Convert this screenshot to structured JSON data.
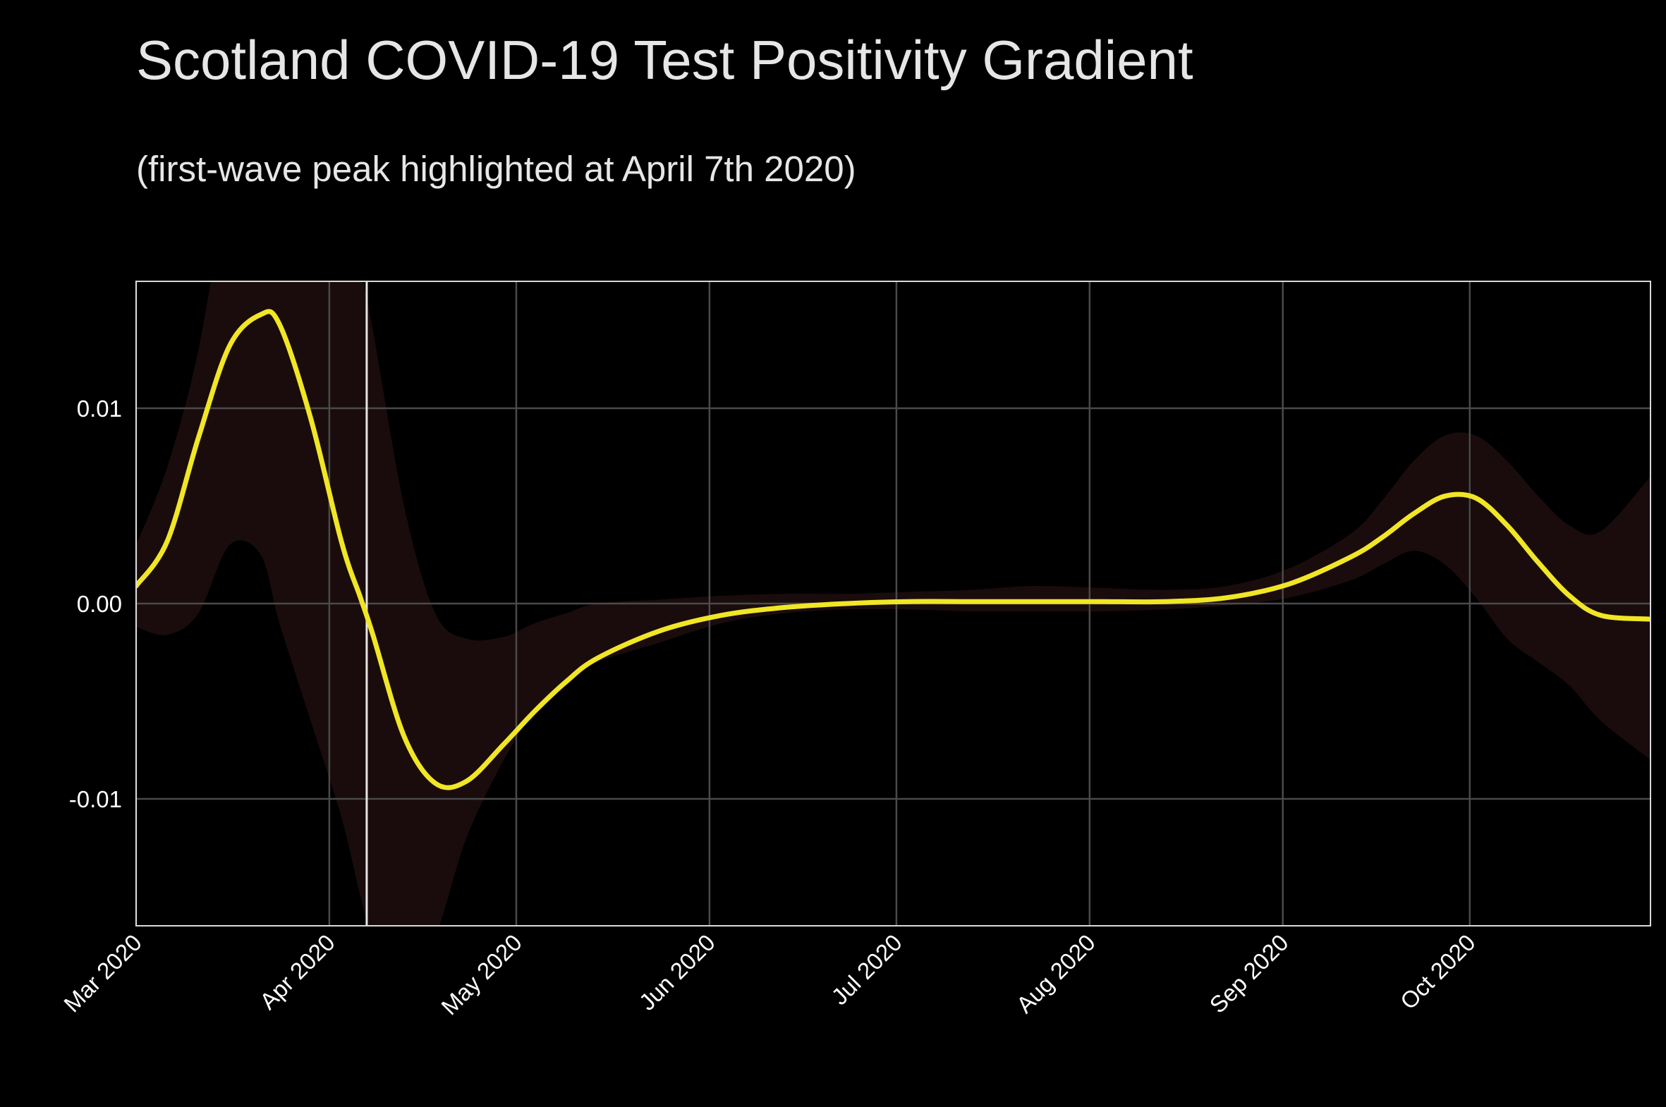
{
  "chart_data": {
    "type": "line",
    "title": "Scotland COVID-19 Test Positivity Gradient",
    "subtitle": "(first-wave peak highlighted at April 7th 2020)",
    "xlabel": "",
    "ylabel": "",
    "x_range": [
      "2020-03-01",
      "2020-10-30"
    ],
    "ylim": [
      -0.0165,
      0.0165
    ],
    "x_ticks": [
      {
        "date": "2020-03-01",
        "label": "Mar 2020"
      },
      {
        "date": "2020-04-01",
        "label": "Apr 2020"
      },
      {
        "date": "2020-05-01",
        "label": "May 2020"
      },
      {
        "date": "2020-06-01",
        "label": "Jun 2020"
      },
      {
        "date": "2020-07-01",
        "label": "Jul 2020"
      },
      {
        "date": "2020-08-01",
        "label": "Aug 2020"
      },
      {
        "date": "2020-09-01",
        "label": "Sep 2020"
      },
      {
        "date": "2020-10-01",
        "label": "Oct 2020"
      }
    ],
    "y_ticks": [
      {
        "value": -0.01,
        "label": "-0.01"
      },
      {
        "value": 0.0,
        "label": "0.00"
      },
      {
        "value": 0.01,
        "label": "0.01"
      }
    ],
    "grid": true,
    "highlight": {
      "date": "2020-04-07",
      "color": "#e6e6e6"
    },
    "colors": {
      "line": "#f0e626",
      "band": "#1a0c0c",
      "grid": "#4a4a4a",
      "frame": "#d9d9d9",
      "background": "#000000"
    },
    "series": [
      {
        "x": [
          "2020-03-01",
          "2020-03-06",
          "2020-03-11",
          "2020-03-16",
          "2020-03-21",
          "2020-03-24",
          "2020-03-29",
          "2020-04-03",
          "2020-04-06",
          "2020-04-08",
          "2020-04-13",
          "2020-04-18",
          "2020-04-23",
          "2020-04-29",
          "2020-05-04",
          "2020-05-09",
          "2020-05-14",
          "2020-05-24",
          "2020-06-03",
          "2020-06-13",
          "2020-06-23",
          "2020-07-03",
          "2020-07-13",
          "2020-07-23",
          "2020-08-03",
          "2020-08-13",
          "2020-08-23",
          "2020-09-02",
          "2020-09-12",
          "2020-09-17",
          "2020-09-22",
          "2020-09-27",
          "2020-10-02",
          "2020-10-07",
          "2020-10-12",
          "2020-10-17",
          "2020-10-22",
          "2020-10-30"
        ],
        "y": [
          0.0009,
          0.0032,
          0.0085,
          0.0132,
          0.0148,
          0.0143,
          0.0095,
          0.0031,
          0.0003,
          -0.0016,
          -0.0068,
          -0.0092,
          -0.0091,
          -0.0072,
          -0.0055,
          -0.004,
          -0.0028,
          -0.0014,
          -0.0006,
          -0.0002,
          0.0,
          0.0001,
          0.0001,
          0.0001,
          0.0001,
          0.0001,
          0.0003,
          0.001,
          0.0024,
          0.0034,
          0.0046,
          0.0055,
          0.0054,
          0.004,
          0.0021,
          0.0004,
          -0.0006,
          -0.0008
        ],
        "lower": [
          -0.0012,
          -0.0016,
          -0.0005,
          0.003,
          0.0025,
          -0.001,
          -0.006,
          -0.011,
          -0.015,
          -0.017,
          -0.019,
          -0.017,
          -0.012,
          -0.008,
          -0.0055,
          -0.004,
          -0.003,
          -0.002,
          -0.001,
          -0.0005,
          -0.0003,
          -0.0003,
          -0.0004,
          -0.0004,
          -0.0004,
          -0.0003,
          -0.0001,
          0.0003,
          0.0012,
          0.002,
          0.0027,
          0.002,
          0.0003,
          -0.0018,
          -0.003,
          -0.0042,
          -0.006,
          -0.008
        ],
        "upper": [
          0.003,
          0.007,
          0.013,
          0.022,
          0.028,
          0.028,
          0.026,
          0.02,
          0.017,
          0.014,
          0.005,
          -0.0005,
          -0.0018,
          -0.0017,
          -0.001,
          -0.0005,
          0.0,
          0.0002,
          0.0004,
          0.0005,
          0.0005,
          0.0006,
          0.0007,
          0.0009,
          0.0008,
          0.0007,
          0.0009,
          0.0018,
          0.0036,
          0.0053,
          0.0073,
          0.0086,
          0.0086,
          0.0073,
          0.0055,
          0.004,
          0.0037,
          0.0065
        ]
      }
    ]
  }
}
